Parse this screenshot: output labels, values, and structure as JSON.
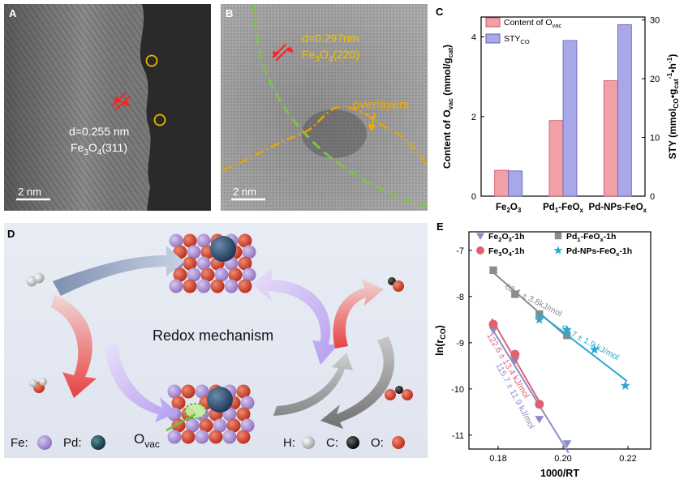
{
  "panel_a": {
    "label": "A",
    "d_text": "d=0.255 nm",
    "phase": "Fe",
    "phase_sub": "3",
    "phase_mid": "O",
    "phase_sub2": "4",
    "phase_end": "(311)",
    "scalebar": "2 nm"
  },
  "panel_b": {
    "label": "B",
    "d_text": "d=0.297nm",
    "phase": "Fe",
    "phase_sub": "3",
    "phase_mid": "O",
    "phase_sub2": "4",
    "phase_end": "(220)",
    "overlayer": "overlayers",
    "scalebar": "2 nm"
  },
  "panel_d": {
    "label": "D",
    "title": "Redox mechanism",
    "ovac_main": "O",
    "ovac_sub": "vac",
    "legend_left": [
      {
        "label": "Fe:",
        "color": "#9b7fc9"
      },
      {
        "label": "Pd:",
        "color": "#1f4d5c"
      }
    ],
    "legend_right": [
      {
        "label": "H:",
        "color": "#d8d8d8"
      },
      {
        "label": "C:",
        "color": "#111111"
      },
      {
        "label": "O:",
        "color": "#c8321e"
      }
    ]
  },
  "chart_data": [
    {
      "panel": "C",
      "type": "bar",
      "categories": [
        {
          "main": "Fe",
          "sub": "2",
          "main2": "O",
          "sub2": "3"
        },
        {
          "main": "Pd",
          "sub": "1",
          "main2": "-FeO",
          "sub2": "x"
        },
        {
          "main": "Pd-NPs-FeO",
          "sub": "x",
          "main2": "",
          "sub2": ""
        }
      ],
      "series": [
        {
          "name_main": "Content of O",
          "name_sub": "vac",
          "values": [
            0.65,
            1.9,
            2.9
          ],
          "axis": "left",
          "color": "#f2a0a8"
        },
        {
          "name_main": "STY",
          "name_sub": "CO",
          "values": [
            4.3,
            26.5,
            29.2
          ],
          "axis": "right",
          "color": "#a8a8e8"
        }
      ],
      "ylabel_left_main": "Content of O",
      "ylabel_left_sub": "vac",
      "ylabel_left_end": " (mmol/g",
      "ylabel_left_sub2": "cat",
      "ylabel_left_close": ")",
      "ylabel_right": "STY (mmol",
      "ylabel_right_sub": "CO",
      "ylabel_right_mid": "•g",
      "ylabel_right_sub2": "cat",
      "ylabel_right_sup": "-1",
      "ylabel_right_end": "•h",
      "ylabel_right_sup2": "-1",
      "ylabel_right_close": ")",
      "ylim_left": [
        0,
        4.5
      ],
      "ylim_right": [
        0,
        30.5
      ],
      "yticks_left": [
        0,
        2,
        4
      ],
      "yticks_right": [
        0,
        10,
        20,
        30
      ]
    },
    {
      "panel": "E",
      "type": "scatter",
      "xlabel": "1000/RT",
      "ylabel_main": "ln(r",
      "ylabel_sub": "CO",
      "ylabel_end": ")",
      "xlim": [
        0.171,
        0.227
      ],
      "ylim": [
        -11.3,
        -6.6
      ],
      "xticks": [
        0.18,
        0.2,
        0.22
      ],
      "yticks": [
        -7,
        -8,
        -9,
        -10,
        -11
      ],
      "series": [
        {
          "name_main": "Fe",
          "name_sub": "2",
          "name_mid": "O",
          "name_sub2": "3",
          "name_end": "-1h",
          "marker": "triangle",
          "color": "#8c8cc8",
          "x": [
            0.1785,
            0.1852,
            0.1927,
            0.2012
          ],
          "y": [
            -8.72,
            -9.38,
            -10.65,
            -11.18
          ],
          "annotation": "115.7 ± 11.9 kJ/mol"
        },
        {
          "name_main": "Pd",
          "name_sub": "1",
          "name_mid": "-FeO",
          "name_sub2": "x",
          "name_end": "-1h",
          "marker": "square",
          "color": "#8c8c8c",
          "x": [
            0.1785,
            0.1852,
            0.1927,
            0.2012
          ],
          "y": [
            -7.43,
            -7.95,
            -8.38,
            -8.84
          ],
          "annotation": "62.1 ± 3.8kJ/mol"
        },
        {
          "name_main": "Fe",
          "name_sub": "3",
          "name_mid": "O",
          "name_sub2": "4",
          "name_end": "-1h",
          "marker": "circle",
          "color": "#e06070",
          "x": [
            0.1785,
            0.1852,
            0.1927
          ],
          "y": [
            -8.6,
            -9.25,
            -10.33
          ],
          "annotation": "122.6 ± 13.4 kJ/mol"
        },
        {
          "name_main": "Pd-NPs-FeO",
          "name_sub": "x",
          "name_mid": "",
          "name_sub2": "",
          "name_end": "-1h",
          "marker": "star",
          "color": "#2aa8d0",
          "x": [
            0.1927,
            0.2012,
            0.2097,
            0.2192
          ],
          "y": [
            -8.5,
            -8.72,
            -9.15,
            -9.93
          ],
          "annotation": "53.7 ± 1.9 kJ/mol"
        }
      ]
    }
  ]
}
